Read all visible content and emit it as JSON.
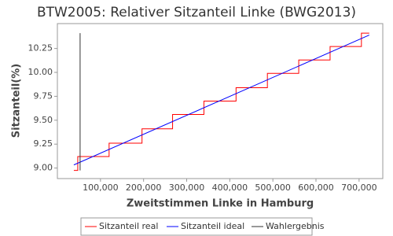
{
  "chart_data": {
    "type": "line",
    "title": "BTW2005: Relativer Sitzanteil Linke (BWG2013)",
    "x_label": "Zweitstimmen Linke in Hamburg",
    "y_label": "Sitzanteil(%)",
    "xlim": [
      0,
      755000
    ],
    "ylim": [
      8.89,
      10.51
    ],
    "xticks": [
      {
        "value": 100000,
        "label": "100,000"
      },
      {
        "value": 200000,
        "label": "200,000"
      },
      {
        "value": 300000,
        "label": "300,000"
      },
      {
        "value": 400000,
        "label": "400,000"
      },
      {
        "value": 500000,
        "label": "500,000"
      },
      {
        "value": 600000,
        "label": "600,000"
      },
      {
        "value": 700000,
        "label": "700,000"
      }
    ],
    "yticks": [
      {
        "value": 9.0,
        "label": "9.00"
      },
      {
        "value": 9.25,
        "label": "9.25"
      },
      {
        "value": 9.5,
        "label": "9.50"
      },
      {
        "value": 9.75,
        "label": "9.75"
      },
      {
        "value": 10.0,
        "label": "10.00"
      },
      {
        "value": 10.25,
        "label": "10.25"
      }
    ],
    "grid": false,
    "series": [
      {
        "name": "Sitzanteil real",
        "color": "#ff0000",
        "x": [
          38182,
          47273,
          47273,
          120000,
          120000,
          196364,
          196364,
          267273,
          267273,
          340000,
          340000,
          414545,
          414545,
          487273,
          487273,
          560000,
          560000,
          632727,
          632727,
          705455,
          705455,
          723636
        ],
        "values": [
          8.975,
          8.975,
          9.12,
          9.12,
          9.26,
          9.26,
          9.41,
          9.41,
          9.56,
          9.56,
          9.7,
          9.7,
          9.84,
          9.84,
          9.99,
          9.99,
          10.13,
          10.13,
          10.27,
          10.27,
          10.41,
          10.41
        ]
      },
      {
        "name": "Sitzanteil ideal",
        "color": "#0000ff",
        "x": [
          38182,
          723636
        ],
        "values": [
          9.033,
          10.39
        ]
      },
      {
        "name": "Wahlergebnis",
        "color": "#333333",
        "x": [
          52727,
          52727
        ],
        "values": [
          8.975,
          10.41
        ]
      }
    ]
  }
}
